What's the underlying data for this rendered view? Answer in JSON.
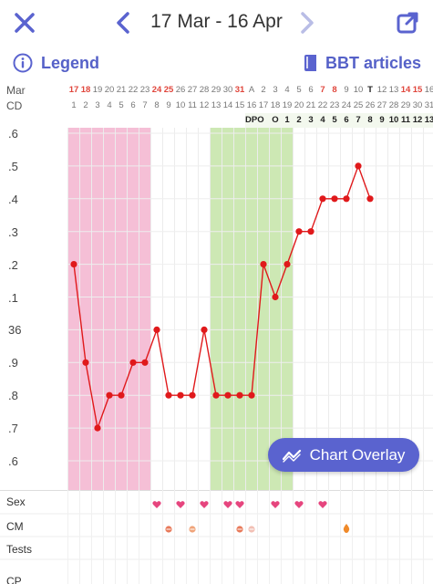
{
  "header": {
    "date_range": "17 Mar - 16 Apr",
    "close_icon": "close-icon",
    "prev_icon": "chevron-left-icon",
    "next_icon": "chevron-right-icon",
    "share_icon": "share-external-icon"
  },
  "toolbar": {
    "legend_label": "Legend",
    "articles_label": "BBT articles"
  },
  "rows": {
    "month_label": "Mar",
    "cd_label": "CD",
    "dpo_label": "DPO"
  },
  "dates": [
    "17",
    "18",
    "19",
    "20",
    "21",
    "22",
    "23",
    "24",
    "25",
    "26",
    "27",
    "28",
    "29",
    "30",
    "31",
    "A",
    "2",
    "3",
    "4",
    "5",
    "6",
    "7",
    "8",
    "9",
    "10",
    "T",
    "12",
    "13",
    "14",
    "15",
    "16"
  ],
  "date_styles": [
    "red",
    "red",
    "",
    "",
    "",
    "",
    "",
    "red",
    "red",
    "",
    "",
    "",
    "",
    "",
    "red",
    "",
    "",
    "",
    "",
    "",
    "",
    "red",
    "red",
    "",
    "",
    "bold",
    "",
    "",
    "red",
    "red",
    ""
  ],
  "cycle_days": [
    "1",
    "2",
    "3",
    "4",
    "5",
    "6",
    "7",
    "8",
    "9",
    "10",
    "11",
    "12",
    "13",
    "14",
    "15",
    "16",
    "17",
    "18",
    "19",
    "20",
    "21",
    "22",
    "23",
    "24",
    "25",
    "26",
    "27",
    "28",
    "29",
    "30",
    "31"
  ],
  "dpo_values": [
    "O",
    "1",
    "2",
    "3",
    "4",
    "5",
    "6",
    "7",
    "8",
    "9",
    "10",
    "11",
    "12",
    "13"
  ],
  "y_axis_labels": [
    ".6",
    ".5",
    ".4",
    ".3",
    ".2",
    ".1",
    "36",
    ".9",
    ".8",
    ".7",
    ".6"
  ],
  "overlay_button": {
    "label": "Chart Overlay"
  },
  "bottom_rows": {
    "sex_label": "Sex",
    "cm_label": "CM",
    "tests_label": "Tests",
    "cp_label": "CP"
  },
  "colors": {
    "accent": "#5a63cf",
    "line": "#e0191b",
    "period_band": "#f5bfd6",
    "fertile_band": "#cde8b4",
    "heart": "#e6457e"
  },
  "chart_data": {
    "type": "line",
    "x": [
      "17",
      "18",
      "19",
      "20",
      "21",
      "22",
      "23",
      "24",
      "25",
      "26",
      "27",
      "28",
      "29",
      "30",
      "31",
      "A",
      "2",
      "3",
      "4",
      "5",
      "6",
      "7",
      "8",
      "9",
      "10",
      "T",
      "12",
      "13",
      "14",
      "15",
      "16"
    ],
    "series": [
      {
        "values": [
          36.2,
          35.9,
          35.7,
          35.8,
          35.8,
          35.9,
          35.9,
          36.0,
          35.8,
          35.8,
          35.8,
          36.0,
          35.8,
          35.8,
          35.8,
          35.8,
          36.2,
          36.1,
          36.2,
          36.3,
          36.3,
          36.4,
          36.4,
          36.4,
          36.5,
          36.4,
          null,
          null,
          null,
          null,
          null
        ]
      }
    ],
    "ylim": [
      35.5,
      36.6
    ],
    "bands": [
      {
        "kind": "period",
        "from": 0,
        "to": 6
      },
      {
        "kind": "fertile",
        "from": 12,
        "to": 18
      }
    ],
    "sex_days": [
      7,
      9,
      11,
      13,
      14,
      17,
      19,
      21
    ],
    "cm_days": [
      8,
      10,
      14,
      15,
      23
    ]
  }
}
